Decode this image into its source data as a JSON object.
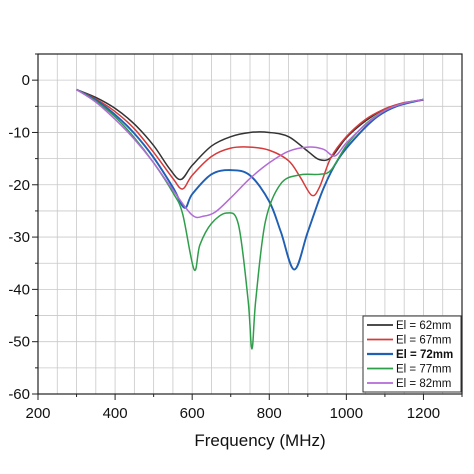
{
  "chart_data": {
    "type": "line",
    "title": "",
    "xlabel": "Frequency (MHz)",
    "ylabel": "",
    "xlim": [
      200,
      1300
    ],
    "ylim": [
      -60,
      5
    ],
    "xticks": [
      200,
      400,
      600,
      800,
      1000,
      1200
    ],
    "xtick_labels": [
      "200",
      "400",
      "600",
      "800",
      "1000",
      "1200"
    ],
    "yticks": [
      0,
      -10,
      -20,
      -30,
      -40,
      -50,
      -60
    ],
    "ytick_labels": [
      "0",
      "-10",
      "-20",
      "-30",
      "-40",
      "-50",
      "-60"
    ],
    "grid": true,
    "legend_position": "bottom-right",
    "series": [
      {
        "name": "El = 62mm",
        "color": "#333333",
        "bold": false,
        "x": [
          300,
          350,
          400,
          450,
          500,
          540,
          570,
          600,
          650,
          700,
          750,
          800,
          850,
          900,
          930,
          960,
          1000,
          1050,
          1100,
          1150,
          1200
        ],
        "y": [
          -1.8,
          -3.3,
          -5.4,
          -8.4,
          -12.5,
          -16.8,
          -19.0,
          -16.3,
          -12.6,
          -10.8,
          -10.0,
          -10.0,
          -10.8,
          -13.6,
          -15.2,
          -14.8,
          -11.0,
          -7.8,
          -5.5,
          -4.4,
          -3.8
        ]
      },
      {
        "name": "El = 67mm",
        "color": "#d63a3a",
        "bold": false,
        "x": [
          300,
          350,
          400,
          450,
          500,
          550,
          575,
          600,
          650,
          700,
          750,
          800,
          850,
          880,
          910,
          930,
          960,
          1000,
          1050,
          1100,
          1150,
          1200
        ],
        "y": [
          -1.8,
          -3.6,
          -6.0,
          -9.3,
          -13.8,
          -18.8,
          -20.8,
          -18.2,
          -14.6,
          -13.0,
          -12.8,
          -13.4,
          -15.4,
          -18.5,
          -22.0,
          -20.5,
          -14.8,
          -10.8,
          -7.5,
          -5.5,
          -4.3,
          -3.8
        ]
      },
      {
        "name": "El = 72mm",
        "color": "#1f5fb4",
        "bold": true,
        "x": [
          300,
          350,
          400,
          450,
          500,
          550,
          580,
          600,
          650,
          700,
          750,
          800,
          830,
          865,
          900,
          940,
          980,
          1030,
          1080,
          1130,
          1200
        ],
        "y": [
          -1.8,
          -3.8,
          -6.6,
          -10.2,
          -14.8,
          -20.5,
          -24.4,
          -21.8,
          -18.0,
          -17.2,
          -18.2,
          -23.2,
          -29.0,
          -36.2,
          -29.0,
          -20.8,
          -15.0,
          -10.5,
          -7.0,
          -5.0,
          -3.7
        ]
      },
      {
        "name": "El = 77mm",
        "color": "#2e9e4a",
        "bold": false,
        "x": [
          300,
          350,
          400,
          450,
          500,
          550,
          575,
          605,
          620,
          650,
          690,
          720,
          745,
          755,
          765,
          790,
          830,
          880,
          930,
          960,
          1000,
          1050,
          1100,
          1150,
          1200
        ],
        "y": [
          -1.8,
          -4.0,
          -7.0,
          -11.0,
          -15.8,
          -21.5,
          -25.5,
          -36.2,
          -31.5,
          -27.4,
          -25.4,
          -27.6,
          -42.0,
          -51.4,
          -42.0,
          -27.0,
          -19.8,
          -18.1,
          -18.0,
          -17.2,
          -12.5,
          -8.4,
          -5.8,
          -4.4,
          -3.7
        ]
      },
      {
        "name": "El = 82mm",
        "color": "#b36ad6",
        "bold": false,
        "x": [
          300,
          350,
          400,
          450,
          500,
          550,
          600,
          630,
          660,
          700,
          750,
          800,
          850,
          900,
          940,
          970,
          1000,
          1050,
          1100,
          1150,
          1200
        ],
        "y": [
          -1.8,
          -4.2,
          -7.5,
          -11.3,
          -15.8,
          -21.0,
          -25.8,
          -26.0,
          -25.2,
          -22.5,
          -18.8,
          -15.8,
          -13.6,
          -12.8,
          -13.2,
          -14.5,
          -12.0,
          -8.5,
          -5.8,
          -4.4,
          -3.7
        ]
      }
    ]
  }
}
